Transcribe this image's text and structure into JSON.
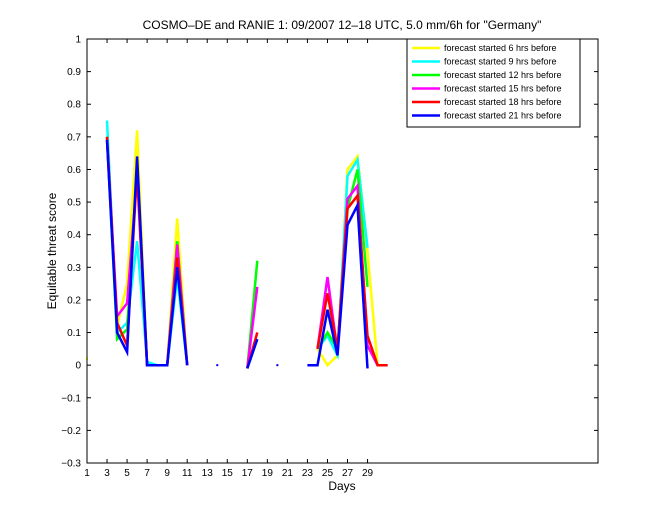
{
  "chart_data": {
    "type": "line",
    "title": "COSMO–DE and RANIE 1: 09/2007 12–18 UTC, 5.0 mm/6h for \"Germany\"",
    "xlabel": "Days",
    "ylabel": "Equitable threat score",
    "xlim": [
      1,
      52
    ],
    "ylim": [
      -0.3,
      1
    ],
    "x_ticks": [
      1,
      3,
      5,
      7,
      9,
      11,
      13,
      15,
      17,
      19,
      21,
      23,
      25,
      27,
      29
    ],
    "y_ticks": [
      -0.3,
      -0.2,
      -0.1,
      0,
      0.1,
      0.2,
      0.3,
      0.4,
      0.5,
      0.6,
      0.7,
      0.8,
      0.9,
      1
    ],
    "x_tick_labels": [
      "1",
      "3",
      "5",
      "7",
      "9",
      "11",
      "13",
      "15",
      "17",
      "19",
      "21",
      "23",
      "25",
      "27",
      "29"
    ],
    "y_tick_labels": [
      "−0.3",
      "−0.2",
      "−0.1",
      "0",
      "0.1",
      "0.2",
      "0.3",
      "0.4",
      "0.5",
      "0.6",
      "0.7",
      "0.8",
      "0.9",
      "1"
    ],
    "legend_position": "top-right",
    "grid": false,
    "series": [
      {
        "name": "forecast started 6 hrs before",
        "color": "#ffff00",
        "points": [
          [
            1,
            0.02
          ],
          [
            null,
            null
          ],
          [
            3,
            0.69
          ],
          [
            4,
            0.12
          ],
          [
            5,
            0.25
          ],
          [
            6,
            0.72
          ],
          [
            7,
            0.0
          ],
          [
            8,
            0.0
          ],
          [
            9,
            0.0
          ],
          [
            10,
            0.45
          ],
          [
            11,
            0.0
          ],
          [
            null,
            null
          ],
          [
            17,
            -0.01
          ],
          [
            18,
            0.08
          ],
          [
            null,
            null
          ],
          [
            20,
            0.0
          ],
          [
            null,
            null
          ],
          [
            24,
            0.05
          ],
          [
            25,
            0.0
          ],
          [
            26,
            0.03
          ],
          [
            27,
            0.6
          ],
          [
            28,
            0.64
          ],
          [
            29,
            0.35
          ],
          [
            30,
            0.0
          ],
          [
            31,
            0.0
          ]
        ]
      },
      {
        "name": "forecast started 9 hrs before",
        "color": "#00ffff",
        "points": [
          [
            3,
            0.75
          ],
          [
            4,
            0.1
          ],
          [
            5,
            0.13
          ],
          [
            6,
            0.38
          ],
          [
            7,
            0.01
          ],
          [
            8,
            0.0
          ],
          [
            9,
            0.0
          ],
          [
            10,
            0.27
          ],
          [
            11,
            0.0
          ],
          [
            null,
            null
          ],
          [
            17,
            -0.01
          ],
          [
            18,
            0.08
          ],
          [
            null,
            null
          ],
          [
            24,
            0.05
          ],
          [
            25,
            0.09
          ],
          [
            26,
            0.03
          ],
          [
            27,
            0.58
          ],
          [
            28,
            0.63
          ],
          [
            29,
            0.36
          ]
        ]
      },
      {
        "name": "forecast started 12 hrs before",
        "color": "#00ff00",
        "points": [
          [
            3,
            0.7
          ],
          [
            4,
            0.08
          ],
          [
            5,
            0.11
          ],
          [
            6,
            0.6
          ],
          [
            7,
            0.0
          ],
          [
            8,
            0.0
          ],
          [
            9,
            0.0
          ],
          [
            10,
            0.38
          ],
          [
            11,
            0.0
          ],
          [
            null,
            null
          ],
          [
            17,
            -0.01
          ],
          [
            18,
            0.32
          ],
          [
            null,
            null
          ],
          [
            24,
            0.05
          ],
          [
            25,
            0.1
          ],
          [
            26,
            0.05
          ],
          [
            27,
            0.48
          ],
          [
            28,
            0.6
          ],
          [
            29,
            0.24
          ]
        ]
      },
      {
        "name": "forecast started 15 hrs before",
        "color": "#ff00ff",
        "points": [
          [
            3,
            0.69
          ],
          [
            4,
            0.15
          ],
          [
            5,
            0.19
          ],
          [
            6,
            0.58
          ],
          [
            7,
            0.0
          ],
          [
            8,
            0.0
          ],
          [
            9,
            0.0
          ],
          [
            10,
            0.37
          ],
          [
            11,
            0.0
          ],
          [
            null,
            null
          ],
          [
            17,
            -0.01
          ],
          [
            18,
            0.24
          ],
          [
            null,
            null
          ],
          [
            24,
            0.05
          ],
          [
            25,
            0.27
          ],
          [
            26,
            0.04
          ],
          [
            27,
            0.51
          ],
          [
            28,
            0.55
          ],
          [
            29,
            0.06
          ],
          [
            30,
            0.0
          ],
          [
            31,
            0.0
          ]
        ]
      },
      {
        "name": "forecast started 18 hrs before",
        "color": "#ff0000",
        "points": [
          [
            3,
            0.7
          ],
          [
            4,
            0.13
          ],
          [
            5,
            0.06
          ],
          [
            6,
            0.6
          ],
          [
            7,
            0.0
          ],
          [
            8,
            0.0
          ],
          [
            9,
            0.0
          ],
          [
            10,
            0.33
          ],
          [
            11,
            0.0
          ],
          [
            null,
            null
          ],
          [
            17,
            -0.01
          ],
          [
            18,
            0.1
          ],
          [
            null,
            null
          ],
          [
            24,
            0.05
          ],
          [
            25,
            0.22
          ],
          [
            26,
            0.05
          ],
          [
            27,
            0.48
          ],
          [
            28,
            0.52
          ],
          [
            29,
            0.09
          ],
          [
            30,
            0.0
          ],
          [
            31,
            0.0
          ]
        ]
      },
      {
        "name": "forecast started 21 hrs before",
        "color": "#0000ff",
        "points": [
          [
            3,
            0.69
          ],
          [
            4,
            0.1
          ],
          [
            5,
            0.04
          ],
          [
            6,
            0.64
          ],
          [
            7,
            0.0
          ],
          [
            8,
            0.0
          ],
          [
            9,
            0.0
          ],
          [
            10,
            0.3
          ],
          [
            11,
            0.0
          ],
          [
            null,
            null
          ],
          [
            14,
            0.0
          ],
          [
            null,
            null
          ],
          [
            17,
            -0.01
          ],
          [
            18,
            0.08
          ],
          [
            null,
            null
          ],
          [
            20,
            0.0
          ],
          [
            null,
            null
          ],
          [
            23,
            0.0
          ],
          [
            24,
            0.0
          ],
          [
            25,
            0.17
          ],
          [
            26,
            0.03
          ],
          [
            27,
            0.43
          ],
          [
            28,
            0.49
          ],
          [
            29,
            -0.01
          ]
        ]
      }
    ]
  }
}
